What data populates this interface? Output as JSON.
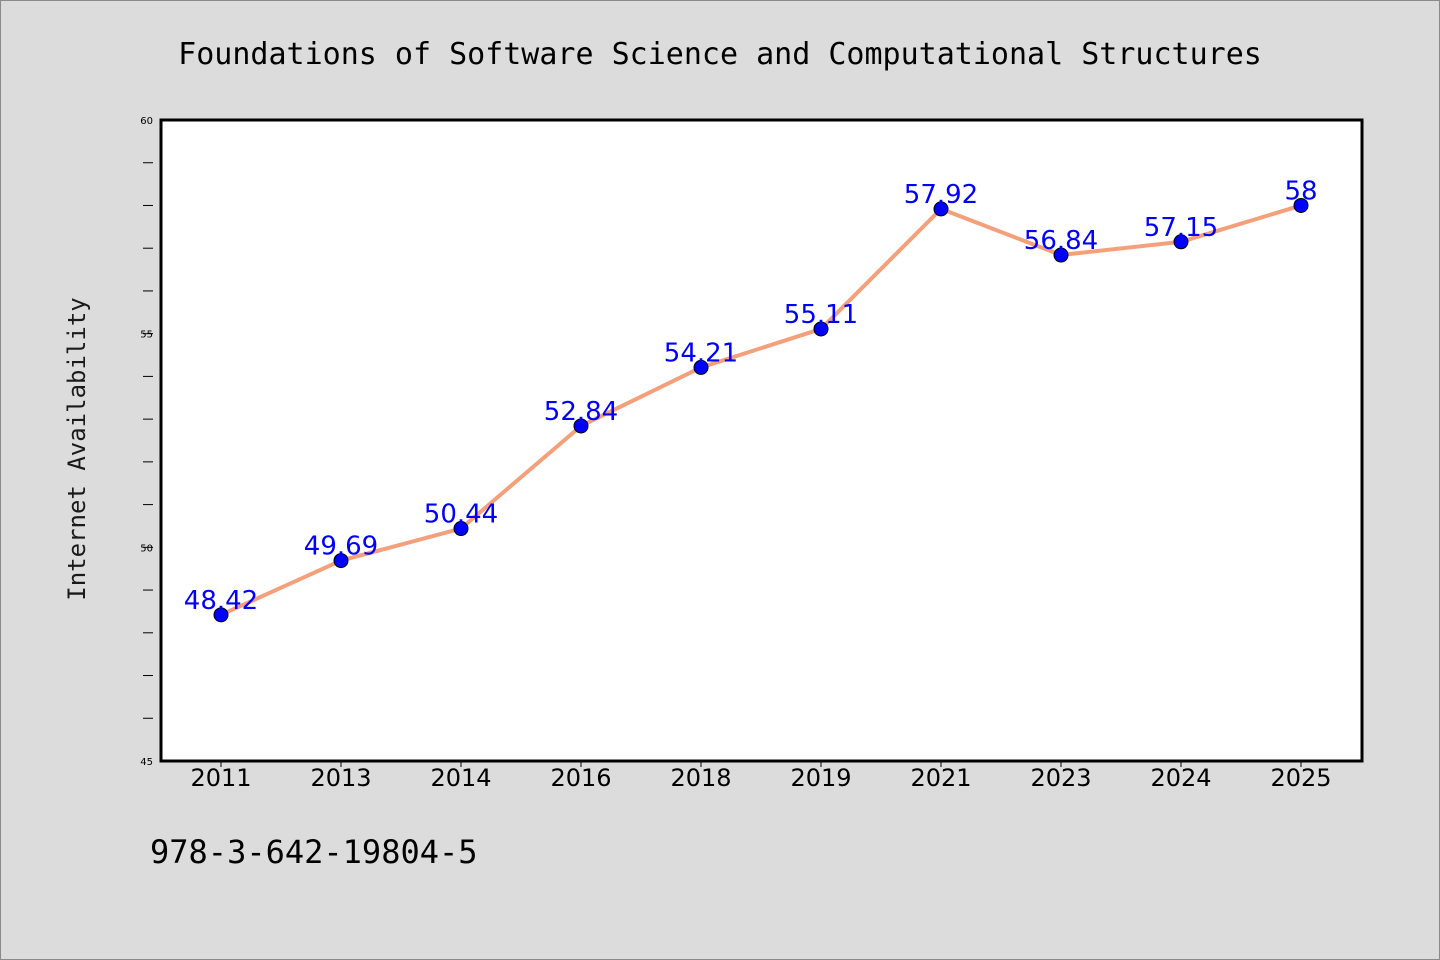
{
  "chart_data": {
    "type": "line",
    "title": "Foundations of Software Science and Computational Structures",
    "xlabel": "",
    "ylabel": "Internet Availability",
    "categories": [
      "2011",
      "2013",
      "2014",
      "2016",
      "2018",
      "2019",
      "2021",
      "2023",
      "2024",
      "2025"
    ],
    "series": [
      {
        "values": [
          48.42,
          49.69,
          50.44,
          52.84,
          54.21,
          55.11,
          57.92,
          56.84,
          57.15,
          58
        ]
      }
    ],
    "data_labels": [
      "48.42",
      "49.69",
      "50.44",
      "52.84",
      "54.21",
      "55.11",
      "57.92",
      "56.84",
      "57.15",
      "58"
    ],
    "ylim": [
      45,
      60
    ],
    "yticks": [
      "45",
      "50",
      "55",
      "60"
    ],
    "grid": false,
    "legend": "none",
    "colors": {
      "line": "#f4a07a",
      "marker": "#0000ff",
      "label": "#0000ff",
      "background": "#dcdcdc",
      "plot_background": "#ffffff"
    }
  },
  "footer": {
    "isbn": "978-3-642-19804-5"
  }
}
